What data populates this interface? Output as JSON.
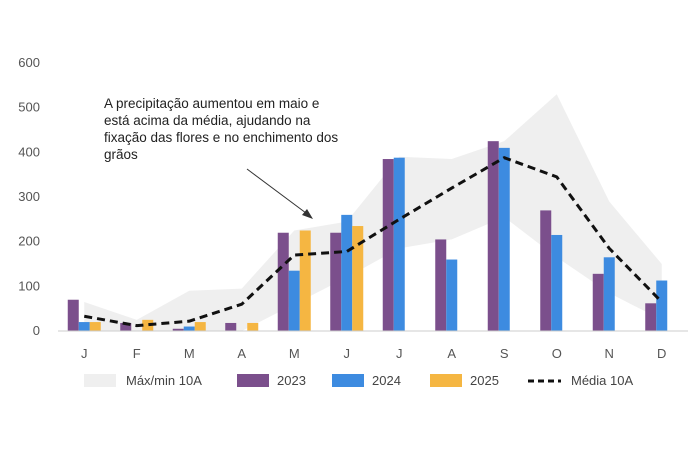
{
  "chart_data": {
    "type": "bar",
    "categories": [
      "J",
      "F",
      "M",
      "A",
      "M",
      "J",
      "J",
      "A",
      "S",
      "O",
      "N",
      "D"
    ],
    "ylim": [
      0,
      600
    ],
    "yticks": [
      0,
      100,
      200,
      300,
      400,
      500,
      600
    ],
    "grid": false,
    "legend_position": "bottom",
    "series": [
      {
        "name": "2023",
        "kind": "bar",
        "color": "#7B4F8C",
        "values": [
          70,
          18,
          5,
          18,
          220,
          220,
          385,
          205,
          425,
          270,
          128,
          62
        ]
      },
      {
        "name": "2024",
        "kind": "bar",
        "color": "#3D8BE0",
        "values": [
          20,
          0,
          10,
          0,
          135,
          260,
          388,
          160,
          410,
          215,
          165,
          113
        ]
      },
      {
        "name": "2025",
        "kind": "bar",
        "color": "#F5B642",
        "values": [
          20,
          25,
          20,
          18,
          225,
          235,
          null,
          null,
          null,
          null,
          null,
          null
        ]
      },
      {
        "name": "Média 10A",
        "kind": "line",
        "color": "#111111",
        "values": [
          33,
          12,
          22,
          60,
          170,
          178,
          250,
          320,
          388,
          345,
          185,
          65
        ]
      }
    ],
    "range_band": {
      "name": "Máx/min 10A",
      "color": "#EFEFEF",
      "max": [
        65,
        25,
        90,
        95,
        225,
        245,
        390,
        385,
        425,
        530,
        290,
        150
      ],
      "min": [
        0,
        0,
        0,
        0,
        60,
        120,
        185,
        205,
        255,
        165,
        85,
        25
      ]
    },
    "annotation": "A precipitação aumentou em maio e está acima da média, ajudando na fixação das flores e no enchimento dos grãos",
    "annotation_lines": [
      "A precipitação aumentou em maio e",
      "está acima da média, ajudando na",
      "fixação das flores e no enchimento dos",
      "grãos"
    ]
  }
}
